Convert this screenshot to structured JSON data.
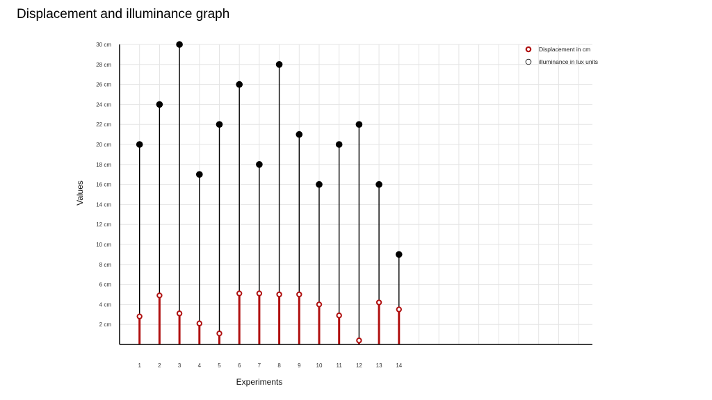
{
  "chart_data": {
    "type": "stem",
    "title": "Displacement and illuminance graph",
    "xlabel": "Experiments",
    "ylabel": "Values",
    "ylim": [
      0,
      30
    ],
    "y_ticks": [
      "2 cm",
      "4 cm",
      "6 cm",
      "8 cm",
      "10 cm",
      "12 cm",
      "14 cm",
      "16 cm",
      "18 cm",
      "20 cm",
      "22 cm",
      "24 cm",
      "26 cm",
      "28 cm",
      "30 cm"
    ],
    "categories": [
      "1",
      "2",
      "3",
      "4",
      "5",
      "6",
      "7",
      "8",
      "9",
      "10",
      "11",
      "12",
      "13",
      "14"
    ],
    "grid": true,
    "legend_position": "top-right",
    "series": [
      {
        "name": "Displacement in cm",
        "color": "#b01010",
        "values": [
          2.8,
          4.9,
          3.1,
          2.1,
          1.1,
          5.1,
          5.1,
          5.0,
          5.0,
          4.0,
          2.9,
          0.4,
          4.2,
          3.5
        ]
      },
      {
        "name": "illuminance in lux units",
        "color": "#000000",
        "values": [
          20,
          24,
          30,
          17,
          22,
          26,
          18,
          28,
          21,
          16,
          20,
          22,
          16,
          9
        ]
      }
    ]
  }
}
